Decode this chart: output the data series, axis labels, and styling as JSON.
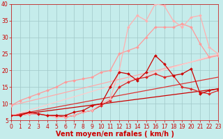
{
  "title": "",
  "xlabel": "Vent moyen/en rafales ( km/h )",
  "xlim": [
    0,
    23
  ],
  "ylim": [
    5,
    40
  ],
  "yticks": [
    5,
    10,
    15,
    20,
    25,
    30,
    35,
    40
  ],
  "xticks": [
    0,
    1,
    2,
    3,
    4,
    5,
    6,
    7,
    8,
    9,
    10,
    11,
    12,
    13,
    14,
    15,
    16,
    17,
    18,
    19,
    20,
    21,
    22,
    23
  ],
  "background_color": "#c5eceb",
  "grid_color": "#a0c8c8",
  "lines": [
    {
      "x": [
        0,
        1,
        2,
        3,
        4,
        5,
        6,
        7,
        8,
        9,
        10,
        11,
        12,
        13,
        14,
        15,
        16,
        17,
        18,
        19,
        20,
        21,
        22,
        23
      ],
      "y": [
        6.5,
        6.5,
        7.5,
        7,
        6.5,
        6.5,
        6.5,
        7.5,
        8,
        9.5,
        10,
        15,
        19.5,
        19,
        17,
        19.5,
        24.5,
        22,
        18.5,
        19,
        20.5,
        13,
        14,
        14.5
      ],
      "color": "#cc0000",
      "lw": 0.9,
      "marker": "D",
      "ms": 2.0,
      "alpha": 1.0,
      "zorder": 5
    },
    {
      "x": [
        0,
        1,
        2,
        3,
        4,
        5,
        6,
        7,
        8,
        9,
        10,
        11,
        12,
        13,
        14,
        15,
        16,
        17,
        18,
        19,
        20,
        21,
        22,
        23
      ],
      "y": [
        6.5,
        6.5,
        7,
        7,
        6.5,
        6.5,
        6,
        6.5,
        7.5,
        8,
        9.5,
        11,
        15,
        16.5,
        17.5,
        18,
        19,
        18,
        18.5,
        15,
        14.5,
        13.5,
        13,
        14
      ],
      "color": "#dd2222",
      "lw": 0.9,
      "marker": "D",
      "ms": 2.0,
      "alpha": 1.0,
      "zorder": 4
    },
    {
      "x": [
        0,
        23
      ],
      "y": [
        6.5,
        14.5
      ],
      "color": "#cc0000",
      "lw": 0.9,
      "marker": null,
      "ms": 0,
      "alpha": 1.0,
      "zorder": 3
    },
    {
      "x": [
        0,
        23
      ],
      "y": [
        6.5,
        18.0
      ],
      "color": "#dd3333",
      "lw": 0.9,
      "marker": null,
      "ms": 0,
      "alpha": 1.0,
      "zorder": 3
    },
    {
      "x": [
        0,
        1,
        2,
        3,
        4,
        5,
        6,
        7,
        8,
        9,
        10,
        11,
        12,
        13,
        14,
        15,
        16,
        17,
        18,
        19,
        20,
        21,
        22,
        23
      ],
      "y": [
        9.5,
        11,
        12,
        13,
        14,
        15,
        16.5,
        17,
        17.5,
        18,
        19.5,
        20,
        25,
        26,
        27,
        30,
        33,
        33,
        33,
        34,
        33,
        28,
        24,
        24.5
      ],
      "color": "#ff9999",
      "lw": 0.9,
      "marker": "D",
      "ms": 2.0,
      "alpha": 1.0,
      "zorder": 4
    },
    {
      "x": [
        0,
        1,
        2,
        3,
        4,
        5,
        6,
        7,
        8,
        9,
        10,
        11,
        12,
        13,
        14,
        15,
        16,
        17,
        18,
        19,
        20,
        21,
        22,
        23
      ],
      "y": [
        6.5,
        6.5,
        7,
        7,
        6.5,
        6,
        6,
        6.5,
        7.5,
        8,
        10,
        11.5,
        20,
        33,
        36.5,
        35,
        40,
        39.5,
        35,
        33,
        36,
        36.5,
        27,
        25
      ],
      "color": "#ffb0b0",
      "lw": 0.9,
      "marker": "D",
      "ms": 2.0,
      "alpha": 1.0,
      "zorder": 4
    },
    {
      "x": [
        0,
        23
      ],
      "y": [
        9.5,
        24.5
      ],
      "color": "#ffaaaa",
      "lw": 0.9,
      "marker": null,
      "ms": 0,
      "alpha": 1.0,
      "zorder": 3
    },
    {
      "x": [
        0,
        23
      ],
      "y": [
        6.5,
        25.0
      ],
      "color": "#ffcccc",
      "lw": 0.9,
      "marker": null,
      "ms": 0,
      "alpha": 1.0,
      "zorder": 3
    }
  ],
  "xlabel_fontsize": 7,
  "tick_fontsize": 5.5,
  "tick_color": "#cc0000",
  "xlabel_color": "#cc0000"
}
